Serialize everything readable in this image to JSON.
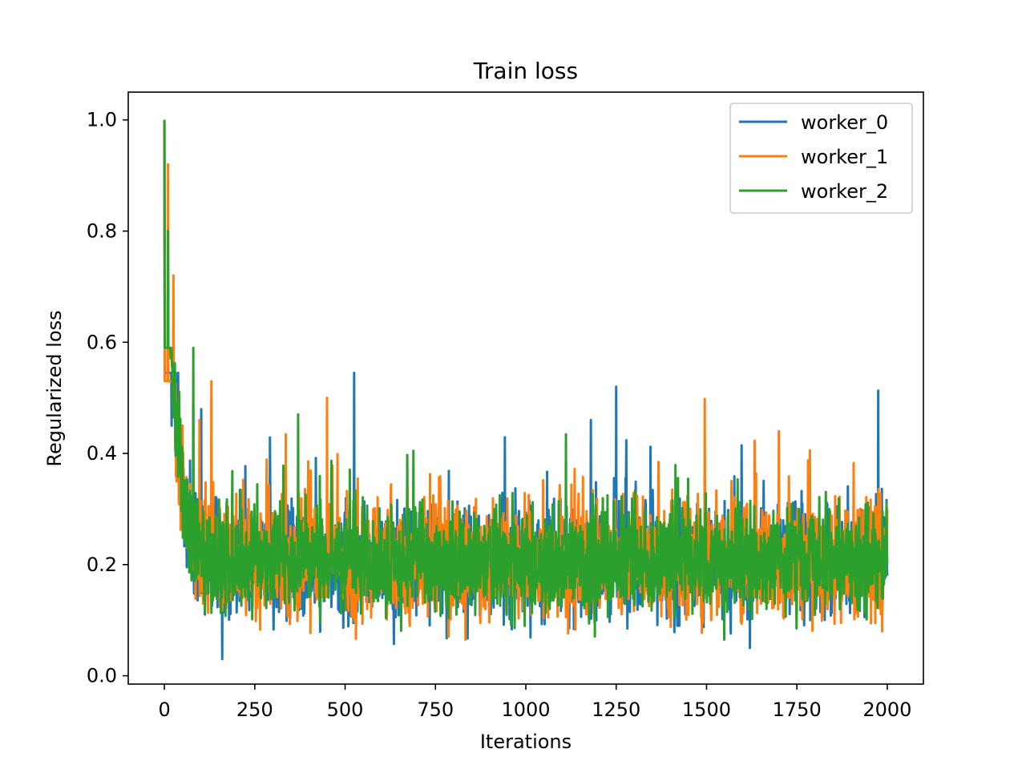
{
  "chart_data": {
    "type": "line",
    "title": "Train loss",
    "xlabel": "Iterations",
    "ylabel": "Regularized loss",
    "xlim": [
      -100,
      2100
    ],
    "ylim": [
      -0.015,
      1.05
    ],
    "x_ticks": [
      0,
      250,
      500,
      750,
      1000,
      1250,
      1500,
      1750,
      2000
    ],
    "x_tick_labels": [
      "0",
      "250",
      "500",
      "750",
      "1000",
      "1250",
      "1500",
      "1750",
      "2000"
    ],
    "y_ticks": [
      0.0,
      0.2,
      0.4,
      0.6,
      0.8,
      1.0
    ],
    "y_tick_labels": [
      "0.0",
      "0.2",
      "0.4",
      "0.6",
      "0.8",
      "1.0"
    ],
    "grid": false,
    "legend_position": "top-right",
    "n_points": 2001,
    "series": [
      {
        "name": "worker_0",
        "color": "#1f77b4",
        "key_points": [
          [
            0,
            1.0
          ],
          [
            10,
            0.78
          ],
          [
            20,
            0.45
          ],
          [
            40,
            0.38
          ],
          [
            80,
            0.2
          ],
          [
            160,
            0.03
          ],
          [
            300,
            0.2
          ],
          [
            525,
            0.545
          ],
          [
            800,
            0.2
          ],
          [
            1180,
            0.46
          ],
          [
            1250,
            0.52
          ],
          [
            1500,
            0.2
          ],
          [
            1620,
            0.05
          ],
          [
            1975,
            0.513
          ],
          [
            2000,
            0.18
          ]
        ],
        "trend": {
          "start": 1.0,
          "floor": 0.205,
          "decay": 28,
          "noise": 0.07,
          "min": 0.03,
          "max": 0.545
        }
      },
      {
        "name": "worker_1",
        "color": "#ff7f0e",
        "key_points": [
          [
            0,
            1.0
          ],
          [
            10,
            0.92
          ],
          [
            25,
            0.72
          ],
          [
            50,
            0.45
          ],
          [
            130,
            0.53
          ],
          [
            300,
            0.25
          ],
          [
            450,
            0.5
          ],
          [
            1000,
            0.2
          ],
          [
            1700,
            0.44
          ],
          [
            2000,
            0.3
          ]
        ],
        "trend": {
          "start": 1.0,
          "floor": 0.205,
          "decay": 28,
          "noise": 0.075,
          "min": 0.065,
          "max": 0.53
        }
      },
      {
        "name": "worker_2",
        "color": "#2ca02c",
        "key_points": [
          [
            0,
            1.0
          ],
          [
            10,
            0.8
          ],
          [
            20,
            0.58
          ],
          [
            80,
            0.59
          ],
          [
            200,
            0.27
          ],
          [
            370,
            0.47
          ],
          [
            800,
            0.2
          ],
          [
            1500,
            0.2
          ],
          [
            2000,
            0.2
          ]
        ],
        "trend": {
          "start": 1.0,
          "floor": 0.205,
          "decay": 28,
          "noise": 0.065,
          "min": 0.05,
          "max": 0.59
        }
      }
    ]
  }
}
